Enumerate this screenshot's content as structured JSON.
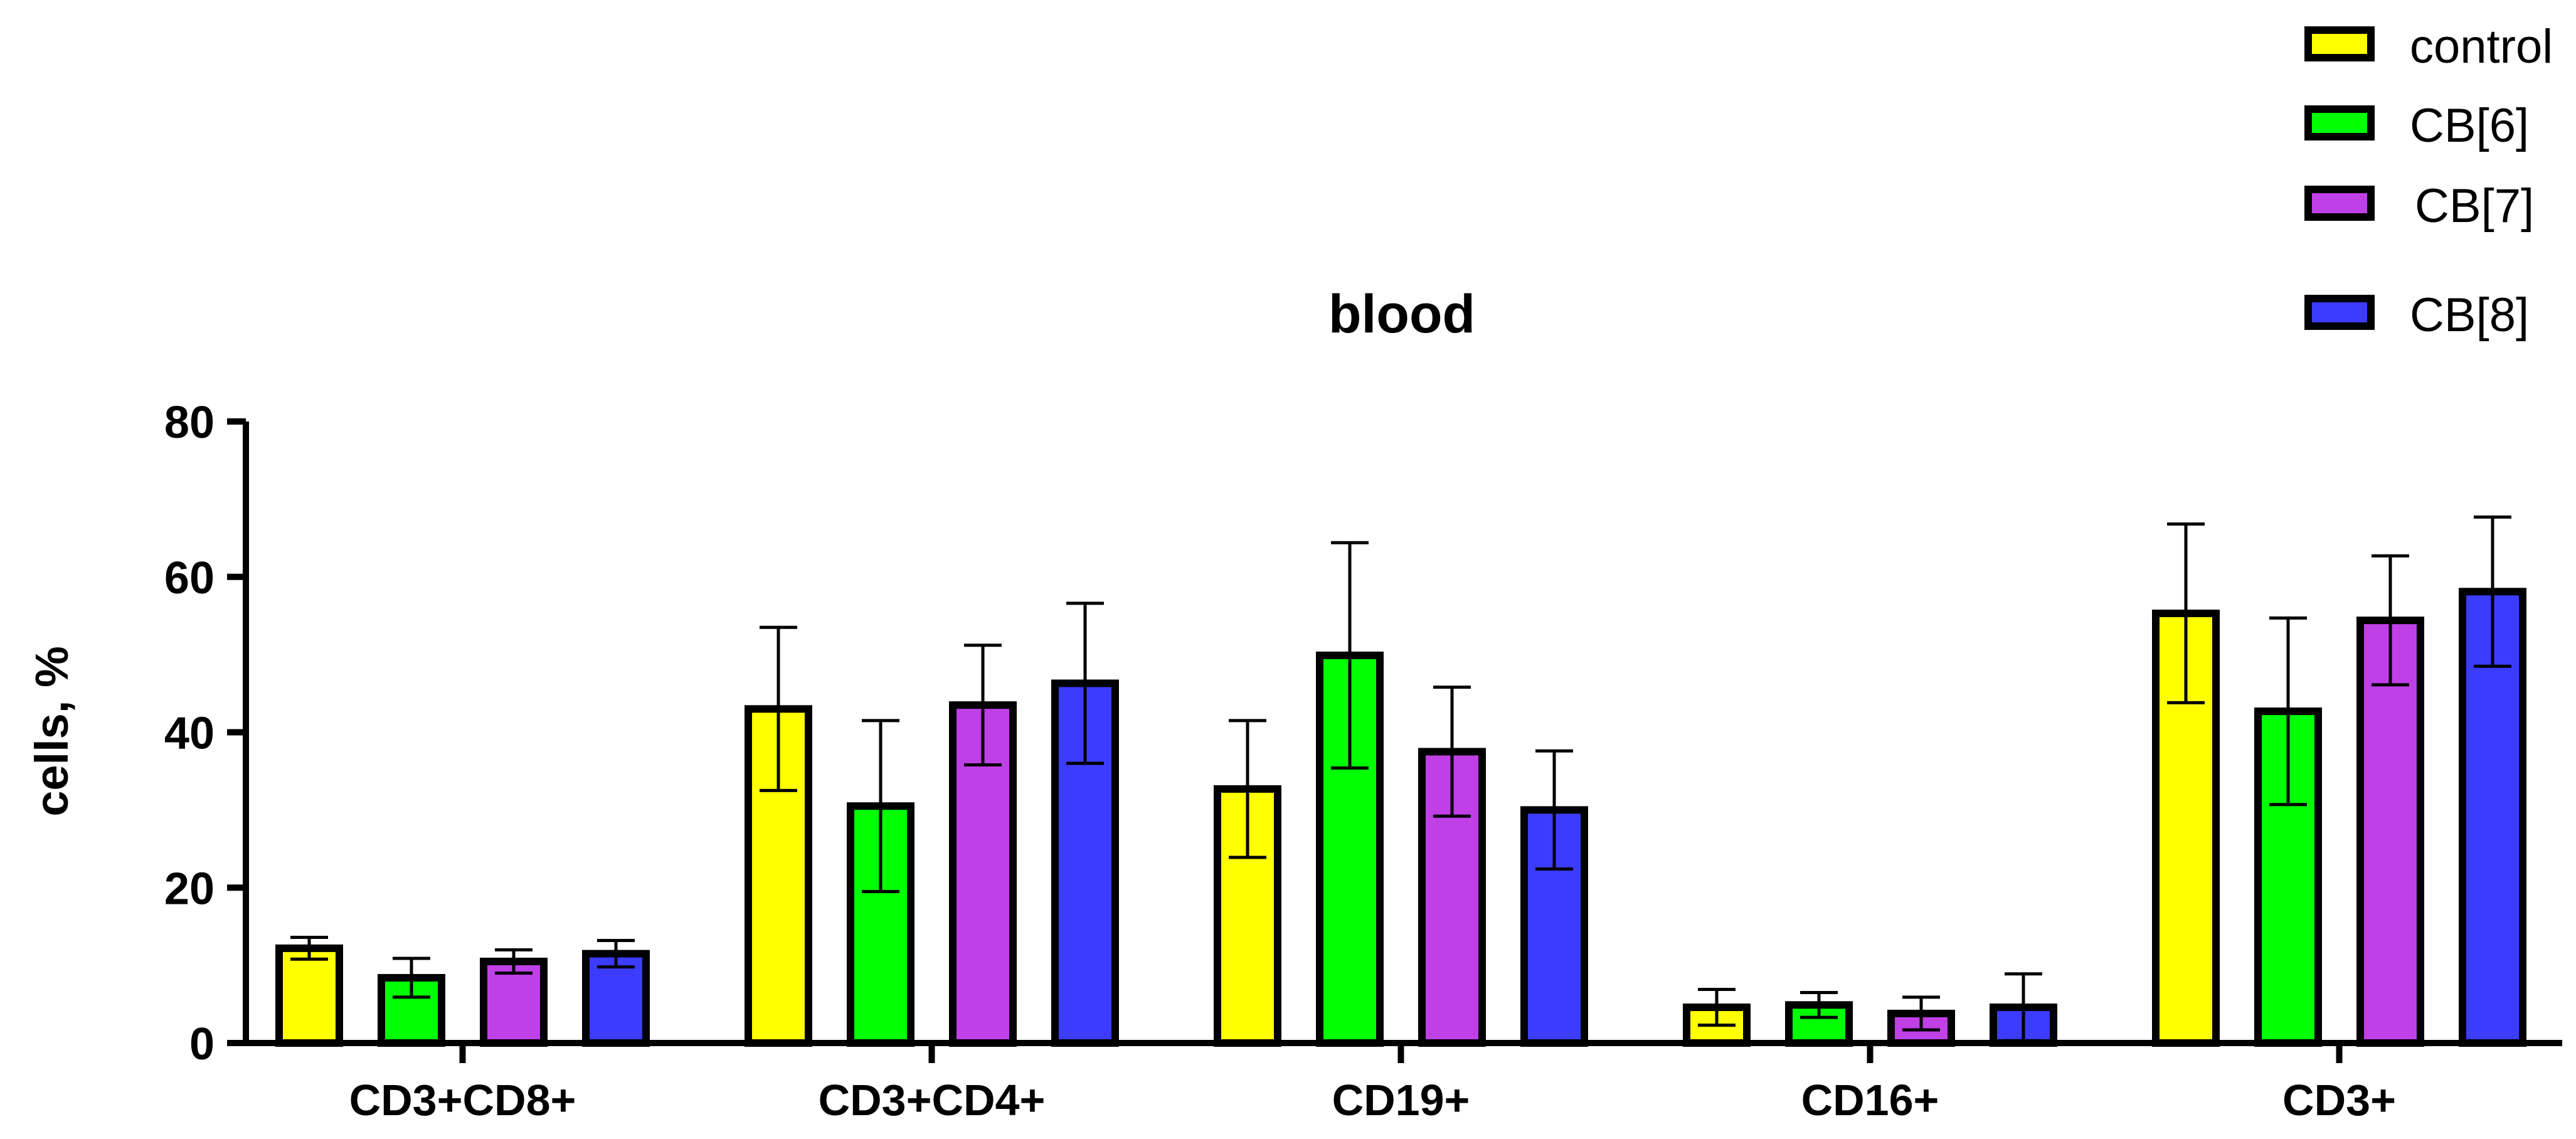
{
  "chart_data": {
    "type": "bar",
    "title": "blood",
    "xlabel": "",
    "ylabel": "cells, %",
    "ylim": [
      0,
      80
    ],
    "yticks": [
      0,
      20,
      40,
      60,
      80
    ],
    "categories": [
      "CD3+CD8+",
      "CD3+CD4+",
      "CD19+",
      "CD16+",
      "CD3+"
    ],
    "series": [
      {
        "name": "control",
        "color": "#FFFF00",
        "values": [
          12.2,
          43.0,
          32.7,
          4.6,
          55.3
        ],
        "errors": [
          1.4,
          10.5,
          8.8,
          2.3,
          11.5
        ]
      },
      {
        "name": "CB[6]",
        "color": "#00FF00",
        "values": [
          8.4,
          30.5,
          49.9,
          4.9,
          42.7
        ],
        "errors": [
          2.5,
          11.0,
          14.5,
          1.6,
          12.0
        ]
      },
      {
        "name": "CB[7]",
        "color": "#C040E8",
        "values": [
          10.5,
          43.5,
          37.5,
          3.8,
          54.4
        ],
        "errors": [
          1.5,
          7.7,
          8.3,
          2.1,
          8.3
        ]
      },
      {
        "name": "CB[8]",
        "color": "#3C3CFF",
        "values": [
          11.5,
          46.3,
          30.0,
          4.6,
          58.1
        ],
        "errors": [
          1.7,
          10.3,
          7.6,
          4.3,
          9.6
        ]
      }
    ],
    "legend": "top-right",
    "grid": false
  }
}
